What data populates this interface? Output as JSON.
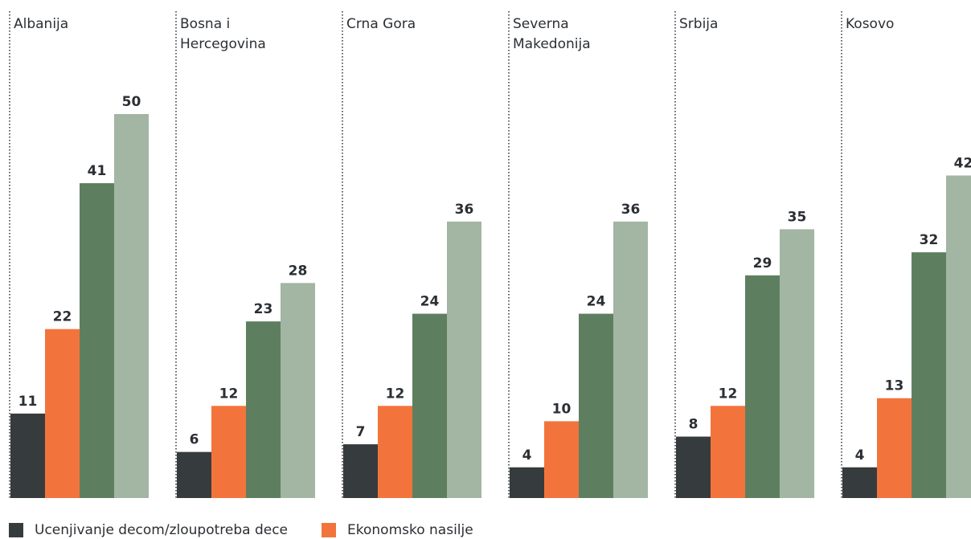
{
  "chart_data": {
    "type": "bar",
    "categories": [
      "Albanija",
      "Bosna i Hercegovina",
      "Crna Gora",
      "Severna Makedonija",
      "Srbija",
      "Kosovo"
    ],
    "category_lines": [
      [
        "Albanija"
      ],
      [
        "Bosna i",
        "Hercegovina"
      ],
      [
        "Crna Gora"
      ],
      [
        "Severna",
        "Makedonija"
      ],
      [
        "Srbija"
      ],
      [
        "Kosovo"
      ]
    ],
    "series": [
      {
        "name": "Ucenjivanje decom/zloupotreba dece",
        "color": "#363b3e",
        "values": [
          11,
          6,
          7,
          4,
          8,
          4
        ]
      },
      {
        "name": "Ekonomsko nasilje",
        "color": "#f2743c",
        "values": [
          22,
          12,
          12,
          10,
          12,
          13
        ]
      },
      {
        "values": [
          41,
          23,
          24,
          24,
          29,
          32
        ],
        "color": "#5e7f5f"
      },
      {
        "values": [
          50,
          28,
          36,
          36,
          35,
          42
        ],
        "color": "#a3b5a3"
      }
    ],
    "ylim": [
      0,
      50
    ],
    "grid": false,
    "legend_position": "bottom-left"
  }
}
